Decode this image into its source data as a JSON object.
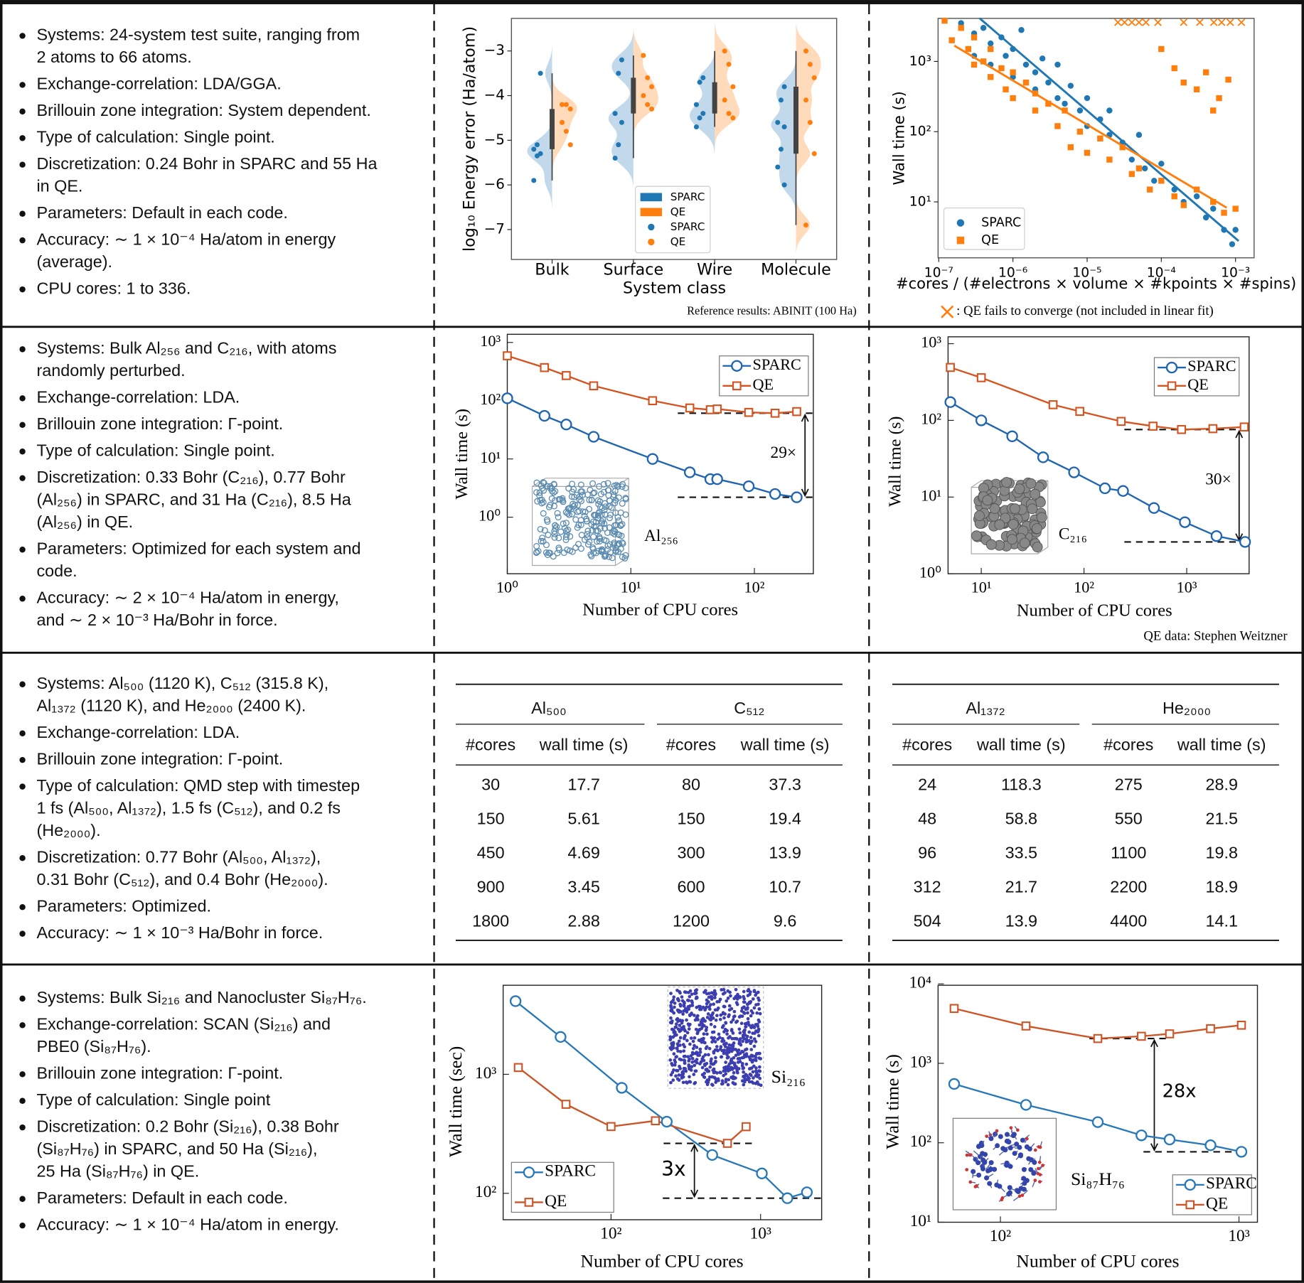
{
  "rows": [
    {
      "bullets": [
        [
          "Systems: 24-system test suite, ranging from",
          "2 atoms to 66 atoms."
        ],
        [
          "Exchange-correlation: LDA/GGA."
        ],
        [
          "Brillouin zone integration: System dependent."
        ],
        [
          "Type of calculation: Single point."
        ],
        [
          "Discretization: 0.24 Bohr in SPARC and 55 Ha",
          "in QE."
        ],
        [
          "Parameters: Default in each code."
        ],
        [
          "Accuracy: ∼ 1 × 10⁻⁴ Ha/atom in energy",
          "(average)."
        ],
        [
          "CPU cores: 1 to 336."
        ]
      ]
    },
    {
      "bullets": [
        [
          "Systems: Bulk Al₂₅₆ and C₂₁₆, with atoms",
          "randomly perturbed."
        ],
        [
          "Exchange-correlation: LDA."
        ],
        [
          "Brillouin zone integration: Γ-point."
        ],
        [
          "Type of calculation: Single point."
        ],
        [
          "Discretization: 0.33 Bohr (C₂₁₆), 0.77 Bohr",
          "(Al₂₅₆) in SPARC, and 31 Ha (C₂₁₆), 8.5 Ha",
          "(Al₂₅₆) in QE."
        ],
        [
          "Parameters: Optimized for each system and",
          "code."
        ],
        [
          "Accuracy: ∼ 2 × 10⁻⁴ Ha/atom in energy,",
          "and ∼ 2 × 10⁻³ Ha/Bohr in force."
        ]
      ]
    },
    {
      "bullets": [
        [
          "Systems: Al₅₀₀ (1120 K), C₅₁₂ (315.8 K),",
          "Al₁₃₇₂ (1120 K), and He₂₀₀₀ (2400 K)."
        ],
        [
          "Exchange-correlation: LDA."
        ],
        [
          "Brillouin zone integration: Γ-point."
        ],
        [
          "Type of calculation: QMD step with timestep",
          "1 fs (Al₅₀₀, Al₁₃₇₂), 1.5 fs (C₅₁₂), and 0.2 fs",
          "(He₂₀₀₀)."
        ],
        [
          "Discretization: 0.77 Bohr (Al₅₀₀, Al₁₃₇₂),",
          "0.31 Bohr (C₅₁₂), and 0.4 Bohr (He₂₀₀₀)."
        ],
        [
          "Parameters: Optimized."
        ],
        [
          "Accuracy: ∼ 1 × 10⁻³ Ha/Bohr in force."
        ]
      ]
    },
    {
      "bullets": [
        [
          "Systems: Bulk Si₂₁₆ and Nanocluster Si₈₇H₇₆."
        ],
        [
          "Exchange-correlation: SCAN (Si₂₁₆) and",
          "PBE0 (Si₈₇H₇₆)."
        ],
        [
          "Brillouin zone integration: Γ-point."
        ],
        [
          "Type of calculation: Single point"
        ],
        [
          "Discretization: 0.2 Bohr (Si₂₁₆), 0.38 Bohr",
          "(Si₈₇H₇₆) in SPARC, and 50 Ha (Si₂₁₆),",
          "25 Ha (Si₈₇H₇₆) in QE."
        ],
        [
          "Parameters: Default in each code."
        ],
        [
          "Accuracy: ∼ 1 × 10⁻⁴ Ha/atom in energy."
        ]
      ]
    }
  ],
  "chart_data": [
    {
      "type": "violin",
      "ylabel": "log₁₀ Energy error (Ha/atom)",
      "xlabel": "System class",
      "note": "Reference results: ABINIT (100 Ha)",
      "categories": [
        "Bulk",
        "Surface",
        "Wire",
        "Molecule"
      ],
      "ylim": [
        -7.67,
        -2.27
      ],
      "yticks": [
        {
          "value": -3,
          "label": "−3"
        },
        {
          "value": -4,
          "label": "−4"
        },
        {
          "value": -5,
          "label": "−5"
        },
        {
          "value": -6,
          "label": "−6"
        },
        {
          "value": -7,
          "label": "−7"
        }
      ],
      "series": [
        {
          "name": "SPARC",
          "color": "#1f77b4",
          "values": [
            [
              -3.5,
              -5.1,
              -5.2,
              -5.3,
              -5.35,
              -5.9
            ],
            [
              -3.2,
              -3.5,
              -4.4,
              -4.6,
              -5.1,
              -5.4
            ],
            [
              -3.6,
              -3.7,
              -4.2,
              -4.4,
              -4.5,
              -4.7
            ],
            [
              -3.8,
              -4.1,
              -4.6,
              -4.7,
              -5.2,
              -5.6,
              -6.0
            ]
          ]
        },
        {
          "name": "QE",
          "color": "#ff7f0e",
          "values": [
            [
              -4.2,
              -4.2,
              -4.3,
              -4.6,
              -4.8,
              -5.1
            ],
            [
              -3.1,
              -3.6,
              -3.8,
              -4.0,
              -4.2,
              -4.3
            ],
            [
              -3.0,
              -3.3,
              -3.8,
              -4.1,
              -4.4,
              -4.5
            ],
            [
              -3.0,
              -3.3,
              -3.6,
              -4.1,
              -4.6,
              -5.3,
              -6.9
            ]
          ]
        }
      ]
    },
    {
      "type": "scatter",
      "xscale": "log",
      "yscale": "log",
      "xlabel": "#cores / (#electrons × volume × #kpoints × #spins)",
      "ylabel": "Wall time (s)",
      "xlim": [
        9.8e-08,
        0.00178
      ],
      "ylim": [
        1.6,
        4100
      ],
      "xticks": [
        {
          "value": 1e-07,
          "label": "10⁻⁷"
        },
        {
          "value": 1e-06,
          "label": "10⁻⁶"
        },
        {
          "value": 1e-05,
          "label": "10⁻⁵"
        },
        {
          "value": 0.0001,
          "label": "10⁻⁴"
        },
        {
          "value": 0.001,
          "label": "10⁻³"
        }
      ],
      "yticks": [
        {
          "value": 10,
          "label": "10¹"
        },
        {
          "value": 100,
          "label": "10²"
        },
        {
          "value": 1000,
          "label": "10³"
        }
      ],
      "series": [
        {
          "name": "SPARC",
          "color": "#1f77b4",
          "marker": "circle",
          "x": [
            2e-07,
            3e-07,
            3e-07,
            4e-07,
            5e-07,
            5e-07,
            7e-07,
            8e-07,
            1e-06,
            1e-06,
            1.3e-06,
            1.5e-06,
            2e-06,
            2e-06,
            2.5e-06,
            3e-06,
            4e-06,
            4e-06,
            5e-06,
            6e-06,
            8e-06,
            1e-05,
            1e-05,
            1.5e-05,
            2e-05,
            2e-05,
            3e-05,
            4e-05,
            5e-05,
            6e-05,
            8e-05,
            0.0001,
            0.00015,
            0.0002,
            0.0003,
            0.0004,
            0.0005,
            0.0007,
            0.0009,
            0.001
          ],
          "y": [
            3500,
            2500,
            1200,
            3000,
            1800,
            900,
            2200,
            1200,
            1500,
            600,
            2800,
            900,
            700,
            400,
            1100,
            500,
            300,
            900,
            250,
            450,
            200,
            300,
            120,
            150,
            90,
            200,
            70,
            40,
            90,
            30,
            20,
            35,
            15,
            10,
            12,
            6,
            8,
            4,
            2.5,
            4
          ],
          "fit": {
            "x": [
              3.55e-07,
              0.0011
            ],
            "y": [
              4120,
              2.78
            ]
          }
        },
        {
          "name": "QE",
          "color": "#ff7f0e",
          "marker": "square",
          "x": [
            1.2e-07,
            1.5e-07,
            2e-07,
            2.5e-07,
            3e-07,
            3e-07,
            4e-07,
            5e-07,
            5e-07,
            7e-07,
            8e-07,
            1e-06,
            1e-06,
            1.5e-06,
            2e-06,
            2e-06,
            3e-06,
            4e-06,
            5e-06,
            6e-06,
            8e-06,
            1e-05,
            1.5e-05,
            2e-05,
            3e-05,
            4e-05,
            5e-05,
            7e-05,
            0.0001,
            0.00015,
            0.0002,
            0.0003,
            0.0005,
            0.0007,
            0.001,
            0.00015,
            0.0002,
            0.0003,
            0.0004,
            0.0006,
            0.0008,
            0.0005,
            0.0001
          ],
          "y": [
            3800,
            2000,
            3000,
            1500,
            900,
            2200,
            1000,
            600,
            1500,
            800,
            400,
            700,
            300,
            500,
            200,
            350,
            250,
            120,
            200,
            60,
            100,
            50,
            80,
            40,
            60,
            25,
            30,
            15,
            20,
            12,
            9,
            15,
            10,
            7,
            8,
            800,
            500,
            400,
            700,
            300,
            550,
            200,
            1500
          ],
          "fit": {
            "x": [
              1.62e-07,
              0.00076
            ],
            "y": [
              1680,
              8.26
            ]
          }
        }
      ],
      "failed": {
        "color": "#ff7f0e",
        "x": [
          2.6e-05,
          3.2e-05,
          4e-05,
          5e-05,
          6.2e-05,
          9e-05,
          0.0002,
          0.00033,
          0.00051,
          0.00065,
          0.00085,
          0.0012
        ],
        "y": [
          3600,
          3600,
          3600,
          3600,
          3600,
          3600,
          3600,
          3600,
          3600,
          3600,
          3600,
          3600
        ]
      },
      "note": ": QE fails to converge (not included in linear fit)"
    },
    {
      "type": "line",
      "xscale": "log",
      "yscale": "log",
      "xlabel": "Number of CPU cores",
      "ylabel": "Wall time (s)",
      "xlim": [
        1,
        300
      ],
      "ylim": [
        0.107,
        1380
      ],
      "xticks": [
        {
          "value": 1,
          "label": "10⁰"
        },
        {
          "value": 10,
          "label": "10¹"
        },
        {
          "value": 100,
          "label": "10²"
        }
      ],
      "yticks": [
        {
          "value": 1,
          "label": "10⁰"
        },
        {
          "value": 10,
          "label": "10¹"
        },
        {
          "value": 100,
          "label": "10²"
        },
        {
          "value": 1000,
          "label": "10³"
        }
      ],
      "series": [
        {
          "name": "SPARC",
          "color": "#1f64b0",
          "marker": "circle",
          "x": [
            1,
            2,
            3,
            5,
            15,
            30,
            44,
            50,
            90,
            147,
            220
          ],
          "values": [
            110,
            55,
            39,
            24,
            10,
            5.9,
            4.5,
            4.5,
            3.4,
            2.5,
            2.2
          ]
        },
        {
          "name": "QE",
          "color": "#d4531f",
          "marker": "square",
          "x": [
            1,
            2,
            3,
            5,
            15,
            30,
            44,
            50,
            90,
            147,
            220
          ],
          "values": [
            590,
            370,
            270,
            180,
            100,
            75,
            70,
            72,
            63,
            61,
            65
          ]
        }
      ],
      "annotations": [
        "29×",
        "Al₂₅₆"
      ]
    },
    {
      "type": "line",
      "xscale": "log",
      "yscale": "log",
      "xlabel": "Number of CPU cores",
      "ylabel": "Wall time (s)",
      "note": "QE data: Stephen Weitzner",
      "xlim": [
        4.75,
        4050
      ],
      "ylim": [
        1,
        1230
      ],
      "xticks": [
        {
          "value": 10,
          "label": "10¹"
        },
        {
          "value": 100,
          "label": "10²"
        },
        {
          "value": 1000,
          "label": "10³"
        }
      ],
      "yticks": [
        {
          "value": 1,
          "label": "10⁰"
        },
        {
          "value": 10,
          "label": "10¹"
        },
        {
          "value": 100,
          "label": "10²"
        },
        {
          "value": 1000,
          "label": "10³"
        }
      ],
      "series": [
        {
          "name": "SPARC",
          "color": "#1f64b0",
          "marker": "circle",
          "x": [
            5,
            10,
            20,
            40,
            80,
            160,
            240,
            480,
            960,
            1950,
            3700
          ],
          "values": [
            173,
            100,
            62,
            33,
            21,
            13,
            12,
            7.2,
            4.7,
            3.1,
            2.6
          ]
        },
        {
          "name": "QE",
          "color": "#d4531f",
          "marker": "square",
          "x": [
            5,
            10,
            50,
            91,
            230,
            470,
            890,
            1800,
            3630
          ],
          "values": [
            490,
            360,
            160,
            131,
            97,
            84,
            76,
            78,
            82
          ]
        }
      ],
      "annotations": [
        "30×",
        "C₂₁₆"
      ]
    },
    {
      "type": "line",
      "xscale": "log",
      "yscale": "log",
      "xlabel": "Number of CPU cores",
      "ylabel": "Wall time (sec)",
      "xlim": [
        19,
        2560
      ],
      "ylim": [
        60,
        5600
      ],
      "xticks": [
        {
          "value": 100,
          "label": "10²"
        },
        {
          "value": 1000,
          "label": "10³"
        }
      ],
      "yticks": [
        {
          "value": 100,
          "label": "10²"
        },
        {
          "value": 1000,
          "label": "10³"
        }
      ],
      "series": [
        {
          "name": "SPARC",
          "color": "#2878b8",
          "marker": "circle",
          "x": [
            23,
            46,
            118,
            236,
            475,
            1020,
            1510,
            2040
          ],
          "values": [
            4120,
            2060,
            770,
            400,
            210,
            147,
            91,
            102
          ]
        },
        {
          "name": "QE",
          "color": "#cc5528",
          "marker": "square",
          "x": [
            24,
            50,
            100,
            198,
            600,
            800
          ],
          "values": [
            1140,
            560,
            364,
            407,
            263,
            363
          ]
        }
      ],
      "annotations": [
        "3x",
        "Si₂₁₆"
      ]
    },
    {
      "type": "line",
      "xscale": "log",
      "yscale": "log",
      "xlabel": "Number of CPU cores",
      "ylabel": "Wall time (s)",
      "xlim": [
        54.8,
        1195
      ],
      "ylim": [
        10,
        9600
      ],
      "xticks": [
        {
          "value": 100,
          "label": "10²"
        },
        {
          "value": 1000,
          "label": "10³"
        }
      ],
      "yticks": [
        {
          "value": 10,
          "label": "10¹"
        },
        {
          "value": 100,
          "label": "10²"
        },
        {
          "value": 1000,
          "label": "10³"
        },
        {
          "value": 10000,
          "label": "10⁴"
        }
      ],
      "series": [
        {
          "name": "SPARC",
          "color": "#2878b8",
          "marker": "circle",
          "x": [
            64,
            128,
            256,
            390,
            512,
            760,
            1024
          ],
          "values": [
            550,
            300,
            182,
            124,
            110,
            93,
            77
          ]
        },
        {
          "name": "QE",
          "color": "#cc5528",
          "marker": "square",
          "x": [
            64,
            128,
            256,
            390,
            512,
            760,
            1024
          ],
          "values": [
            4900,
            2950,
            2050,
            2190,
            2350,
            2730,
            3020
          ]
        }
      ],
      "annotations": [
        "28x",
        "Si₈₇H₇₆"
      ]
    }
  ],
  "tables": [
    {
      "groups": [
        {
          "name": "Al₅₀₀",
          "columns": [
            "#cores",
            "wall time (s)"
          ],
          "rows": [
            [
              30,
              17.7
            ],
            [
              150,
              5.61
            ],
            [
              450,
              4.69
            ],
            [
              900,
              3.45
            ],
            [
              1800,
              2.88
            ]
          ]
        },
        {
          "name": "C₅₁₂",
          "columns": [
            "#cores",
            "wall time (s)"
          ],
          "rows": [
            [
              80,
              37.3
            ],
            [
              150,
              19.4
            ],
            [
              300,
              13.9
            ],
            [
              600,
              10.7
            ],
            [
              1200,
              9.6
            ]
          ]
        }
      ]
    },
    {
      "groups": [
        {
          "name": "Al₁₃₇₂",
          "columns": [
            "#cores",
            "wall time (s)"
          ],
          "rows": [
            [
              24,
              118.3
            ],
            [
              48,
              58.8
            ],
            [
              96,
              33.5
            ],
            [
              312,
              21.7
            ],
            [
              504,
              13.9
            ]
          ]
        },
        {
          "name": "He₂₀₀₀",
          "columns": [
            "#cores",
            "wall time (s)"
          ],
          "rows": [
            [
              275,
              28.9
            ],
            [
              550,
              21.5
            ],
            [
              1100,
              19.8
            ],
            [
              2200,
              18.9
            ],
            [
              4400,
              14.1
            ]
          ]
        }
      ]
    }
  ]
}
